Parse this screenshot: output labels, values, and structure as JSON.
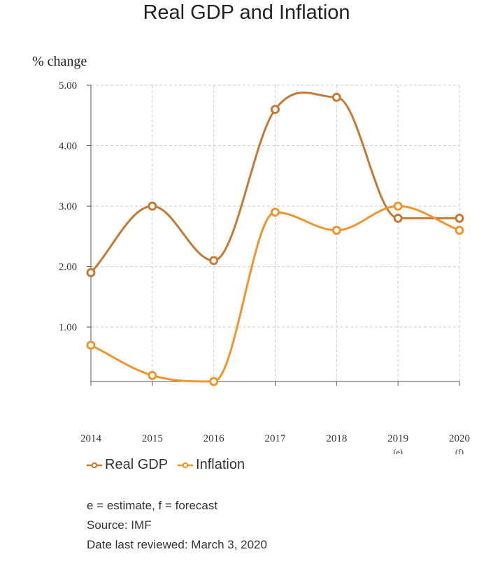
{
  "chart_data": {
    "type": "line",
    "title": "Real GDP and Inflation",
    "ylabel": "% change",
    "xlabel": "",
    "categories": [
      "2014",
      "2015",
      "2016",
      "2017",
      "2018",
      "2019",
      "2020"
    ],
    "category_notes": [
      "",
      "",
      "",
      "",
      "",
      "(e)",
      "(f)"
    ],
    "ylim": [
      0.1,
      5.0
    ],
    "yticks": [
      "1.00",
      "2.00",
      "3.00",
      "4.00",
      "5.00"
    ],
    "grid": true,
    "legend_position": "bottom-left",
    "series": [
      {
        "name": "Real GDP",
        "color": "#c47a35",
        "values": [
          1.9,
          3.0,
          2.1,
          4.6,
          4.8,
          2.8,
          2.8
        ]
      },
      {
        "name": "Inflation",
        "color": "#f0952e",
        "values": [
          0.7,
          0.2,
          0.1,
          2.9,
          2.6,
          3.0,
          2.6
        ]
      }
    ]
  },
  "notes": {
    "line1": "e = estimate, f = forecast",
    "line2": "Source: IMF",
    "line3": "Date last reviewed: March 3, 2020"
  }
}
